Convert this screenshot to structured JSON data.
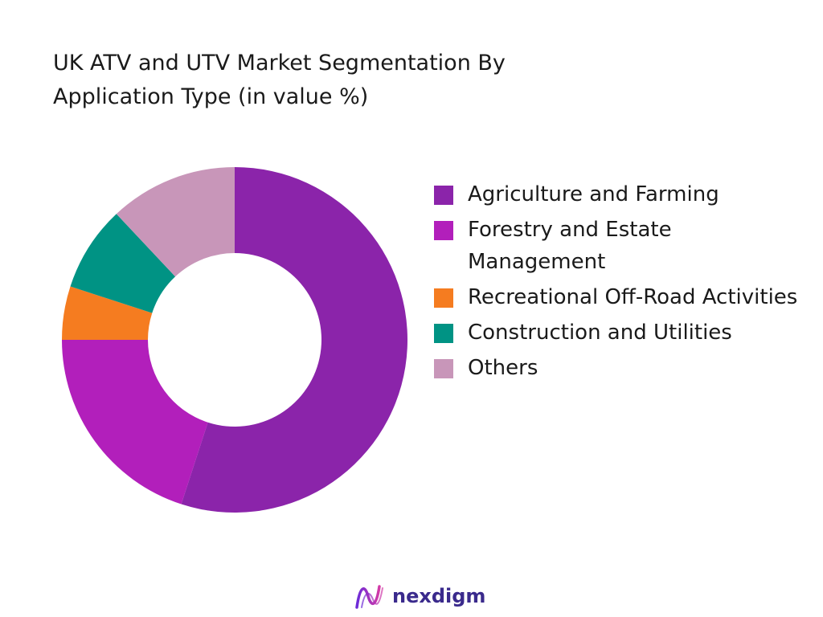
{
  "chart_data": {
    "type": "pie",
    "title": "UK ATV and UTV Market Segmentation By Application Type (in value %)",
    "donut": true,
    "legend_position": "right",
    "categories": [
      "Agriculture and Farming",
      "Forestry and Estate Management",
      "Recreational Off-Road Activities",
      "Construction and Utilities",
      "Others"
    ],
    "values": [
      55,
      20,
      5,
      8,
      12
    ],
    "colors": [
      "#8b24aa",
      "#b21fbb",
      "#f57c20",
      "#009384",
      "#c896b9"
    ]
  },
  "brand": {
    "name": "nexdigm",
    "icon": "nexdigm-logo-icon"
  }
}
